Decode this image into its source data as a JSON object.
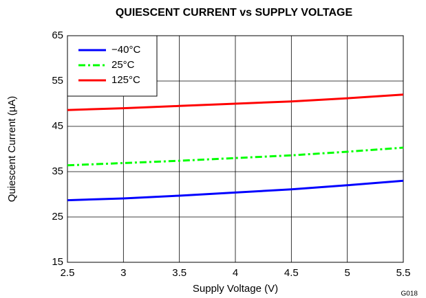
{
  "chart_data": {
    "type": "line",
    "title": "QUIESCENT CURRENT vs SUPPLY VOLTAGE",
    "x_label": "Supply Voltage (V)",
    "y_label": "Quiescent Current (µA)",
    "annotation": "G018",
    "x": [
      2.5,
      3,
      3.5,
      4,
      4.5,
      5,
      5.5
    ],
    "series": [
      {
        "name": "−40°C",
        "color": "#0000ff",
        "style": "solid",
        "values": [
          28.7,
          29.1,
          29.7,
          30.4,
          31.1,
          32.0,
          33.0
        ]
      },
      {
        "name": "25°C",
        "color": "#00ff00",
        "style": "dashdot",
        "values": [
          36.4,
          36.9,
          37.4,
          38.0,
          38.6,
          39.4,
          40.3
        ]
      },
      {
        "name": "125°C",
        "color": "#ff0000",
        "style": "solid",
        "values": [
          48.6,
          49.0,
          49.5,
          50.0,
          50.5,
          51.2,
          52.0
        ]
      }
    ],
    "xlim": [
      2.5,
      5.5
    ],
    "xticks": [
      2.5,
      3,
      3.5,
      4,
      4.5,
      5,
      5.5
    ],
    "ylim": [
      15,
      65
    ],
    "yticks": [
      15,
      25,
      35,
      45,
      55,
      65
    ],
    "grid": true,
    "legend": "upper left"
  }
}
